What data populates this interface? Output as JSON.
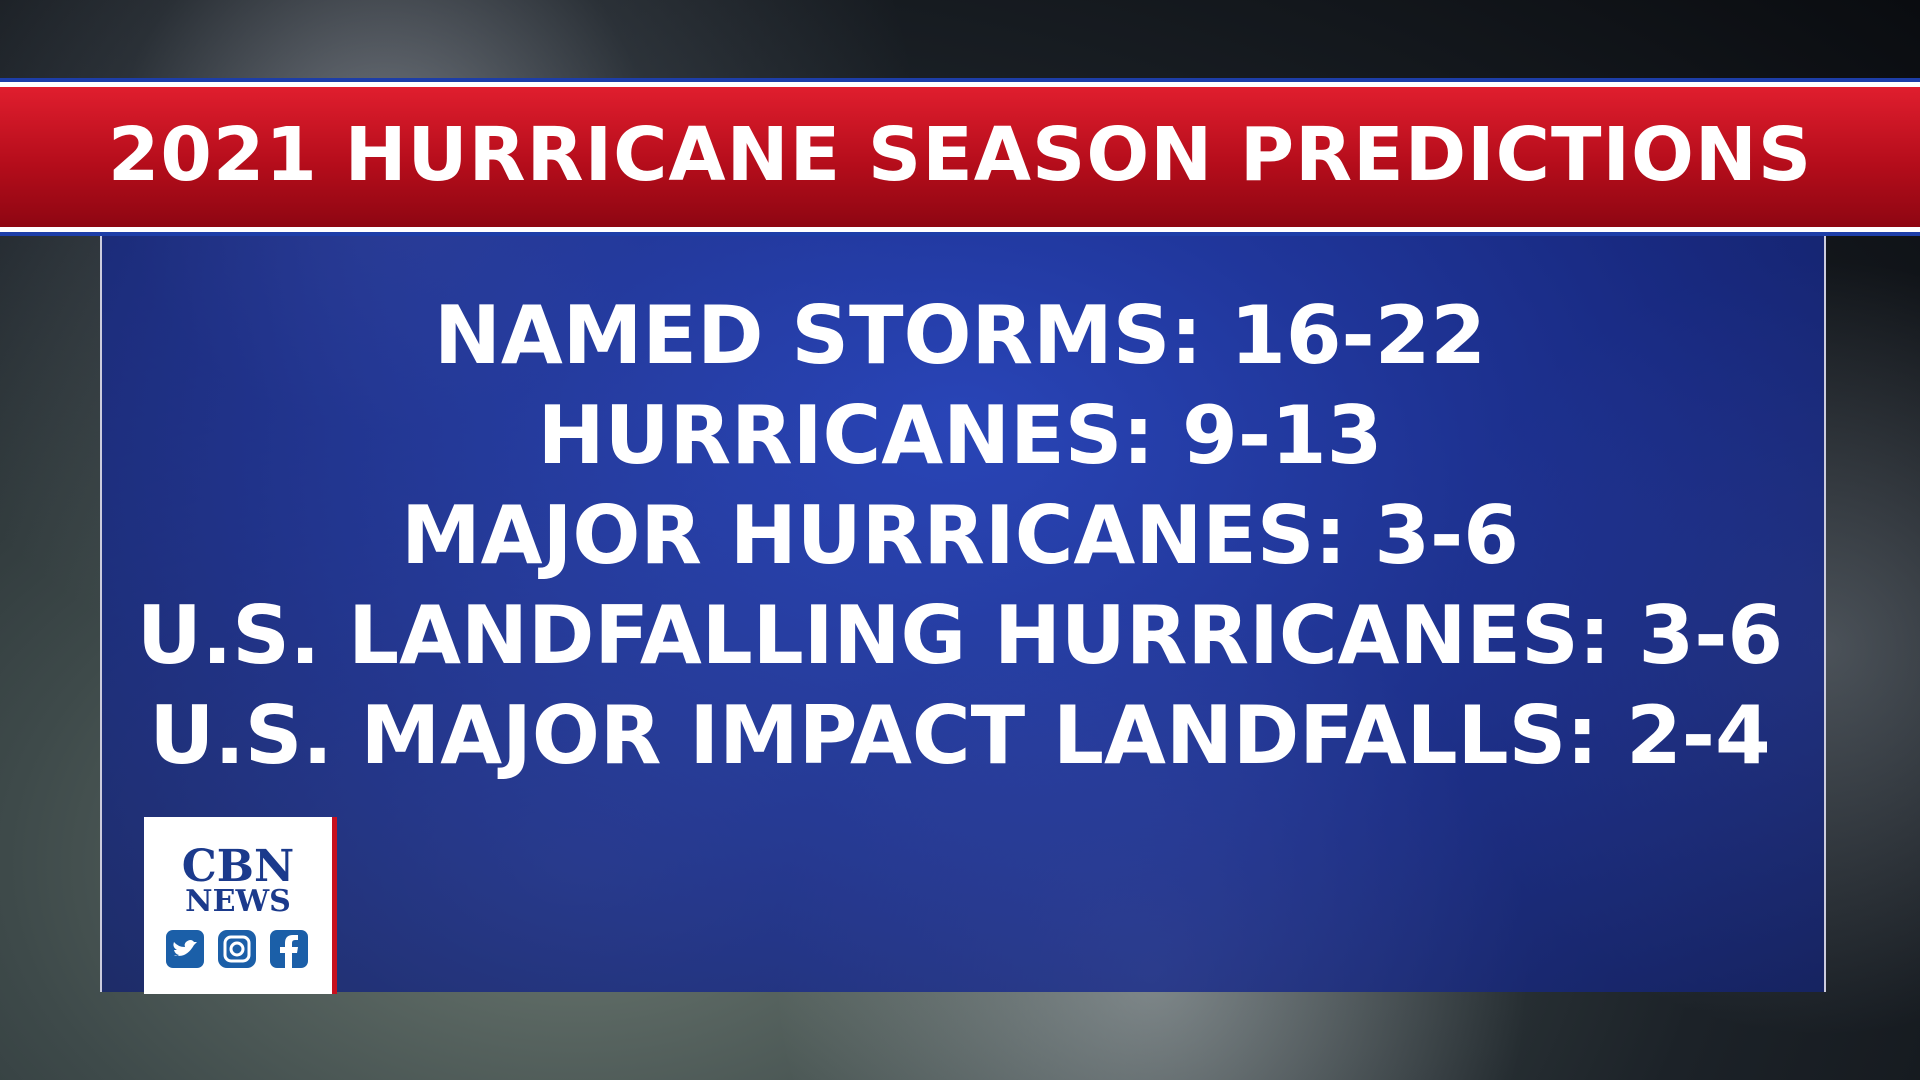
{
  "header": {
    "title": "2021 HURRICANE SEASON PREDICTIONS"
  },
  "predictions": [
    "NAMED STORMS: 16-22",
    "HURRICANES: 9-13",
    "MAJOR HURRICANES: 3-6",
    "U.S. LANDFALLING HURRICANES: 3-6",
    "U.S. MAJOR IMPACT LANDFALLS: 2-4"
  ],
  "logo": {
    "brand": "CBN",
    "subtitle": "NEWS"
  }
}
